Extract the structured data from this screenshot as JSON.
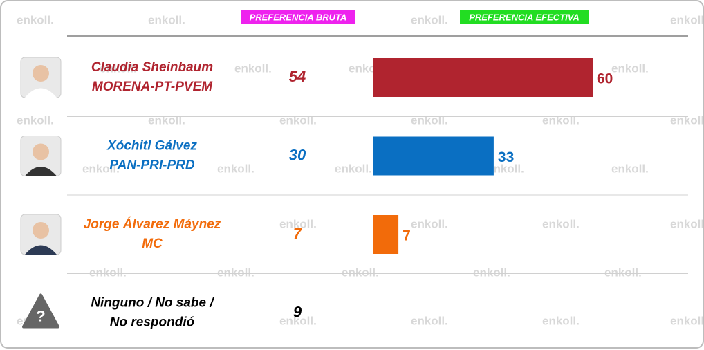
{
  "header": {
    "bruta": "PREFERENCIA BRUTA",
    "efectiva": "PREFERENCIA EFECTIVA"
  },
  "watermark": "enkoll.",
  "chart_data": {
    "type": "bar",
    "series": [
      {
        "name": "Claudia Sheinbaum",
        "party": "MORENA-PT-PVEM",
        "color": "#b0242f",
        "bruta": 54,
        "efectiva": 60
      },
      {
        "name": "Xóchitl Gálvez",
        "party": "PAN-PRI-PRD",
        "color": "#0a6fc2",
        "bruta": 30,
        "efectiva": 33
      },
      {
        "name": "Jorge Álvarez Máynez",
        "party": "MC",
        "color": "#f26b0a",
        "bruta": 7,
        "efectiva": 7
      },
      {
        "name": "Ninguno / No sabe /",
        "party": "No respondió",
        "color": "#000000",
        "bruta": 9,
        "efectiva": null
      }
    ]
  }
}
